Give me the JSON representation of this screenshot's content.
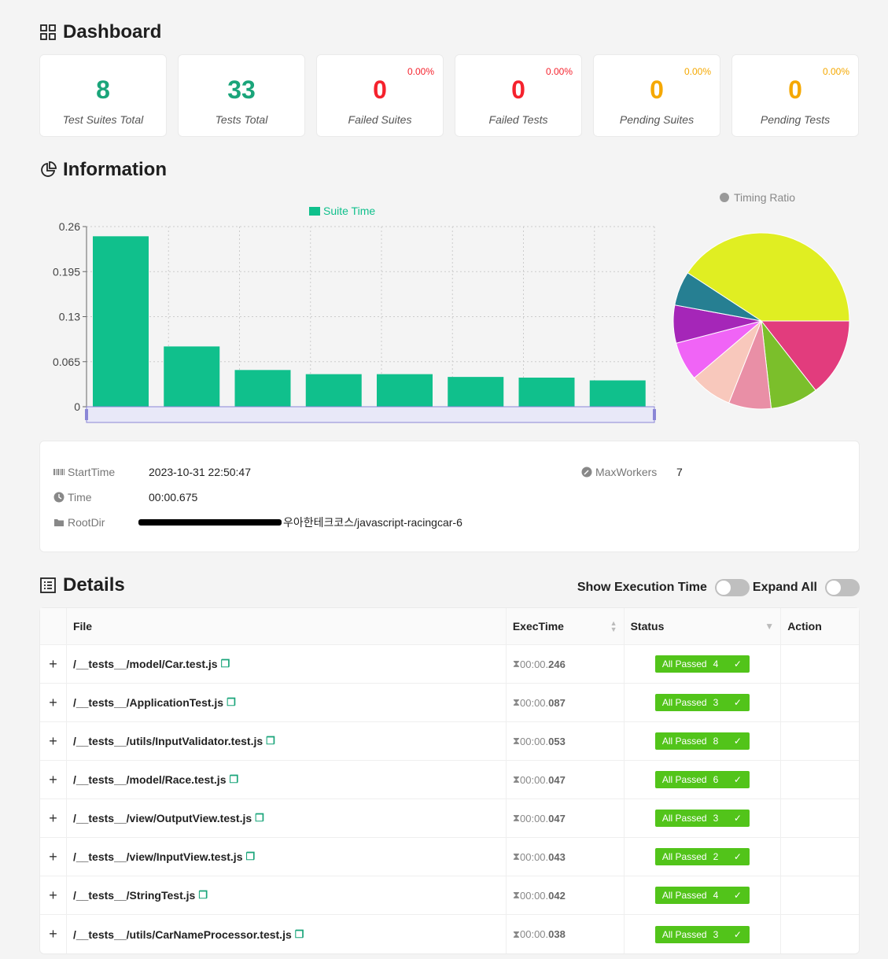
{
  "dashboard": {
    "title": "Dashboard",
    "cards": [
      {
        "value": "8",
        "label": "Test Suites Total",
        "pct": ""
      },
      {
        "value": "33",
        "label": "Tests Total",
        "pct": ""
      },
      {
        "value": "0",
        "label": "Failed Suites",
        "pct": "0.00%"
      },
      {
        "value": "0",
        "label": "Failed Tests",
        "pct": "0.00%"
      },
      {
        "value": "0",
        "label": "Pending Suites",
        "pct": "0.00%"
      },
      {
        "value": "0",
        "label": "Pending Tests",
        "pct": "0.00%"
      }
    ]
  },
  "information": {
    "title": "Information",
    "start_time_label": "StartTime",
    "start_time": "2023-10-31 22:50:47",
    "time_label": "Time",
    "time": "00:00.675",
    "rootdir_label": "RootDir",
    "rootdir_suffix": "우아한테크코스/javascript-racingcar-6",
    "max_workers_label": "MaxWorkers",
    "max_workers": "7"
  },
  "chart_data": [
    {
      "type": "bar",
      "legend": "Suite Time",
      "legend_color": "#10c08c",
      "yticks": [
        "0",
        "0.065",
        "0.13",
        "0.195",
        "0.26"
      ],
      "ylim": [
        0,
        0.26
      ],
      "values": [
        0.246,
        0.087,
        0.053,
        0.047,
        0.047,
        0.043,
        0.042,
        0.038
      ],
      "grid": true
    },
    {
      "type": "pie",
      "title": "Timing Ratio",
      "values": [
        0.246,
        0.087,
        0.053,
        0.047,
        0.047,
        0.043,
        0.042,
        0.038
      ],
      "colors": [
        "#e0ee22",
        "#e23c7d",
        "#7bbf2b",
        "#e98fa6",
        "#f8c8bc",
        "#f064f6",
        "#a526b8",
        "#267f92"
      ]
    }
  ],
  "details": {
    "title": "Details",
    "show_exec_label": "Show Execution Time",
    "expand_all_label": "Expand All",
    "headers": {
      "file": "File",
      "exec": "ExecTime",
      "status": "Status",
      "action": "Action"
    },
    "rows": [
      {
        "file": "/__tests__/model/Car.test.js",
        "exec_prefix": "00:00.",
        "exec_ms": "246",
        "status": "All Passed",
        "count": "4"
      },
      {
        "file": "/__tests__/ApplicationTest.js",
        "exec_prefix": "00:00.",
        "exec_ms": "087",
        "status": "All Passed",
        "count": "3"
      },
      {
        "file": "/__tests__/utils/InputValidator.test.js",
        "exec_prefix": "00:00.",
        "exec_ms": "053",
        "status": "All Passed",
        "count": "8"
      },
      {
        "file": "/__tests__/model/Race.test.js",
        "exec_prefix": "00:00.",
        "exec_ms": "047",
        "status": "All Passed",
        "count": "6"
      },
      {
        "file": "/__tests__/view/OutputView.test.js",
        "exec_prefix": "00:00.",
        "exec_ms": "047",
        "status": "All Passed",
        "count": "3"
      },
      {
        "file": "/__tests__/view/InputView.test.js",
        "exec_prefix": "00:00.",
        "exec_ms": "043",
        "status": "All Passed",
        "count": "2"
      },
      {
        "file": "/__tests__/StringTest.js",
        "exec_prefix": "00:00.",
        "exec_ms": "042",
        "status": "All Passed",
        "count": "4"
      },
      {
        "file": "/__tests__/utils/CarNameProcessor.test.js",
        "exec_prefix": "00:00.",
        "exec_ms": "038",
        "status": "All Passed",
        "count": "3"
      }
    ]
  }
}
